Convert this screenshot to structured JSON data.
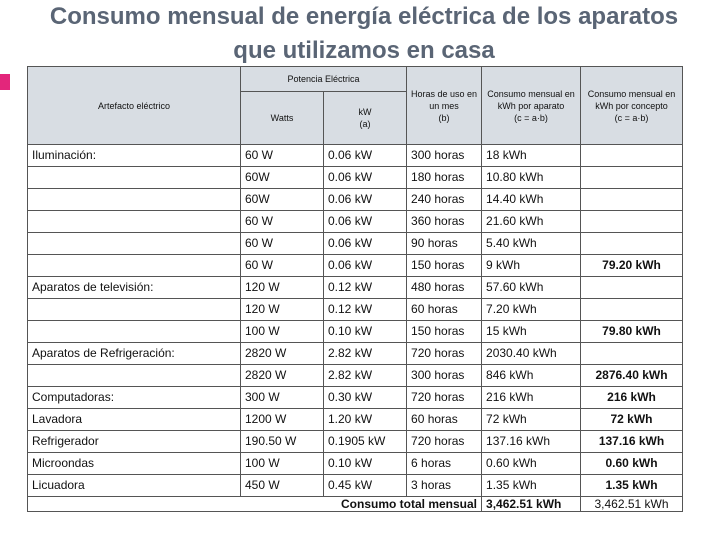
{
  "title_line1": "Consumo mensual de energía eléctrica de los  aparatos",
  "title_line2": "que utilizamos en casa",
  "headers": {
    "artefacto": "Artefacto eléctrico",
    "potencia": "Potencia Eléctrica",
    "watts": "Watts",
    "kw": "kW",
    "kw_sub": "(a)",
    "horas": "Horas de uso en un mes",
    "horas_sub": "(b)",
    "consumo_aparato": "Consumo mensual en kWh por aparato",
    "consumo_aparato_sub": "(c = a·b)",
    "consumo_concepto": "Consumo mensual en kWh por concepto",
    "consumo_concepto_sub": "(c = a·b)"
  },
  "rows": [
    {
      "name": "Iluminación:",
      "watts": "60 W",
      "kw": "0.06 kW",
      "horas": "300 horas",
      "kwh": "18 kWh",
      "total": ""
    },
    {
      "name": "",
      "watts": "60W",
      "kw": "0.06 kW",
      "horas": "180 horas",
      "kwh": "10.80 kWh",
      "total": ""
    },
    {
      "name": "",
      "watts": "60W",
      "kw": "0.06 kW",
      "horas": "240 horas",
      "kwh": "14.40 kWh",
      "total": ""
    },
    {
      "name": "",
      "watts": "60 W",
      "kw": "0.06 kW",
      "horas": "360 horas",
      "kwh": "21.60 kWh",
      "total": ""
    },
    {
      "name": "",
      "watts": "60 W",
      "kw": "0.06 kW",
      "horas": "90 horas",
      "kwh": "5.40 kWh",
      "total": ""
    },
    {
      "name": "",
      "watts": "60 W",
      "kw": "0.06 kW",
      "horas": "150 horas",
      "kwh": "9 kWh",
      "total": "79.20 kWh"
    },
    {
      "name": "Aparatos de televisión:",
      "watts": "120 W",
      "kw": "0.12 kW",
      "horas": "480 horas",
      "kwh": "57.60 kWh",
      "total": ""
    },
    {
      "name": "",
      "watts": "120 W",
      "kw": "0.12 kW",
      "horas": "60 horas",
      "kwh": "7.20 kWh",
      "total": ""
    },
    {
      "name": "",
      "watts": "100 W",
      "kw": "0.10 kW",
      "horas": "150 horas",
      "kwh": "15 kWh",
      "total": "79.80 kWh"
    },
    {
      "name": "Aparatos de Refrigeración:",
      "watts": "2820 W",
      "kw": "2.82 kW",
      "horas": "720 horas",
      "kwh": "2030.40 kWh",
      "total": ""
    },
    {
      "name": "",
      "watts": "2820 W",
      "kw": "2.82 kW",
      "horas": "300 horas",
      "kwh": "846 kWh",
      "total": "2876.40 kWh"
    },
    {
      "name": "Computadoras:",
      "watts": "300 W",
      "kw": "0.30 kW",
      "horas": "720 horas",
      "kwh": "216 kWh",
      "total": "216 kWh"
    },
    {
      "name": "Lavadora",
      "watts": "1200 W",
      "kw": "1.20 kW",
      "horas": "60 horas",
      "kwh": "72 kWh",
      "total": "72 kWh"
    },
    {
      "name": "Refrigerador",
      "watts": "190.50 W",
      "kw": "0.1905 kW",
      "horas": "720 horas",
      "kwh": "137.16 kWh",
      "total": "137.16 kWh"
    },
    {
      "name": "Microondas",
      "watts": "100 W",
      "kw": "0.10 kW",
      "horas": "6 horas",
      "kwh": "0.60 kWh",
      "total": "0.60 kWh"
    },
    {
      "name": "Licuadora",
      "watts": "450 W",
      "kw": "0.45 kW",
      "horas": "3 horas",
      "kwh": "1.35 kWh",
      "total": "1.35 kWh"
    }
  ],
  "footer": {
    "label": "Consumo total mensual",
    "value_bold": "3,462.51 kWh",
    "value_plain": "3,462.51 kWh"
  },
  "colors": {
    "title": "#5a6575",
    "accent": "#e3267b",
    "header_bg": "#d8dde3"
  }
}
